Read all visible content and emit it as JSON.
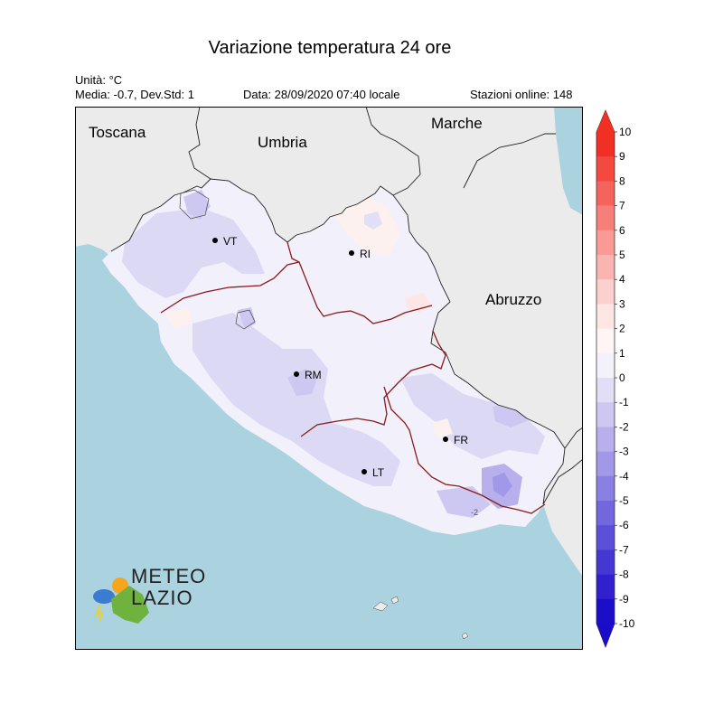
{
  "title": "Variazione temperatura 24 ore",
  "header": {
    "unit": "Unità: °C",
    "stats": "Media: -0.7, Dev.Std: 1",
    "date": "Data: 28/09/2020 07:40 locale",
    "stations": "Stazioni online: 148"
  },
  "regions": {
    "toscana": "Toscana",
    "umbria": "Umbria",
    "marche": "Marche",
    "abruzzo": "Abruzzo"
  },
  "cities": {
    "vt": "VT",
    "ri": "RI",
    "rm": "RM",
    "fr": "FR",
    "lt": "LT"
  },
  "contour_labels": {
    "a": "-2"
  },
  "logo": {
    "line1": "METEO",
    "line2": "LAZIO"
  },
  "colorbar": {
    "labels": [
      "10",
      "9",
      "8",
      "7",
      "6",
      "5",
      "4",
      "3",
      "2",
      "1",
      "0",
      "-1",
      "-2",
      "-3",
      "-4",
      "-5",
      "-6",
      "-7",
      "-8",
      "-9",
      "-10"
    ],
    "colors": [
      "#f02f25",
      "#f3493f",
      "#f5645c",
      "#f77f79",
      "#f99a95",
      "#fbb5b1",
      "#fcd0cd",
      "#fde6e4",
      "#fff5f4",
      "#f3f2fb",
      "#e1def6",
      "#cdc8f2",
      "#b8b0ed",
      "#a198e8",
      "#8a80e3",
      "#7367dd",
      "#5c4fd8",
      "#4538d2",
      "#3021cd",
      "#1c0ec8"
    ],
    "top_arrow": "#f02f25",
    "bottom_arrow": "#1b0dc7"
  },
  "colors": {
    "sea": "#aad3df",
    "outside": "#ebebeb",
    "lazio_base": "#f1f0fb",
    "province_border": "#8b1a1a",
    "region_border": "#222222"
  }
}
